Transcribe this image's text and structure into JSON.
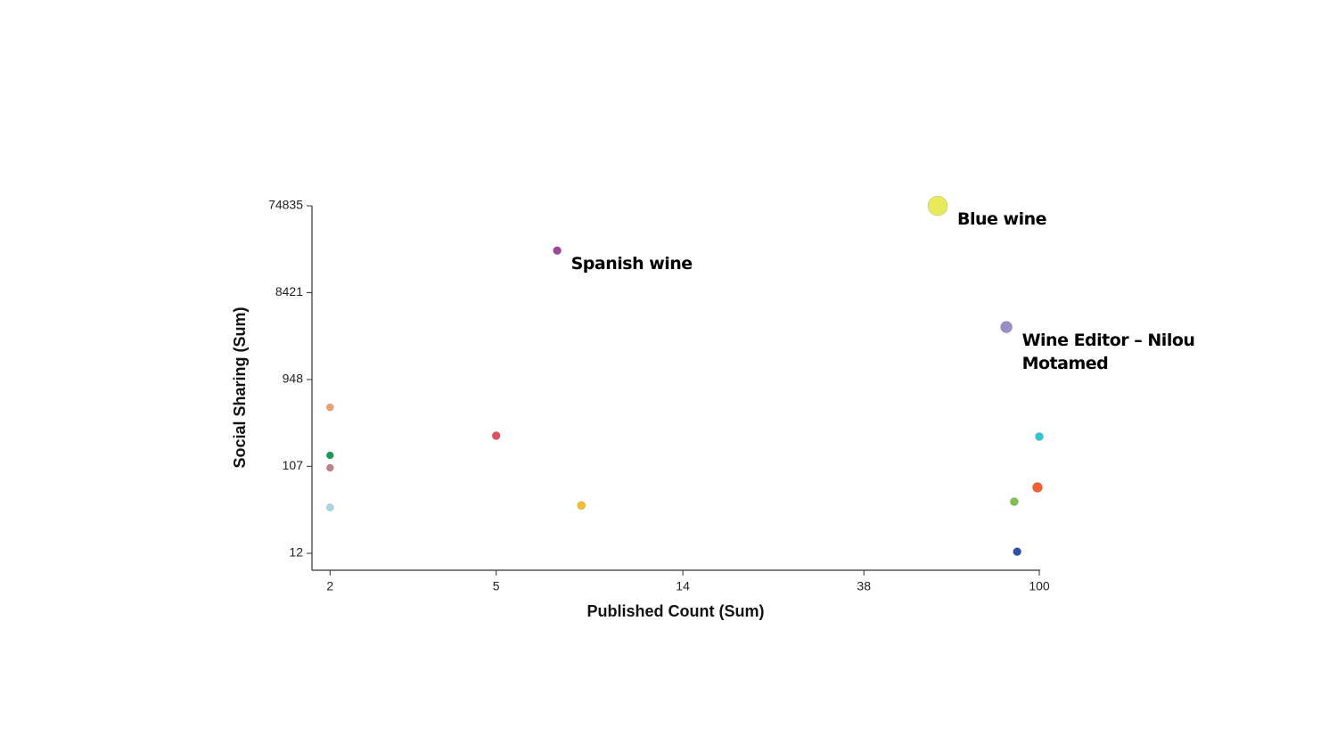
{
  "chart_data": {
    "type": "scatter",
    "x_label": "Published Count (Sum)",
    "y_label": "Social Sharing (Sum)",
    "xscale": "log",
    "yscale": "log",
    "xlim": [
      1.81,
      100
    ],
    "ylim": [
      7.84,
      74835
    ],
    "xticks": [
      2,
      5,
      14,
      38,
      100
    ],
    "yticks": [
      12,
      107,
      948,
      8421,
      74835
    ],
    "x": [
      7.0,
      57.1,
      83.4,
      2,
      5,
      2,
      2,
      2,
      8.0,
      100,
      99.0,
      87.1,
      88.5
    ],
    "values": [
      24300,
      74800,
      3548,
      472,
      231,
      141,
      103,
      38,
      40,
      226,
      63,
      44,
      12.5
    ],
    "sizes": [
      4.5,
      11,
      6.5,
      4,
      4.5,
      4,
      4,
      4,
      4.5,
      4.5,
      5.5,
      4.5,
      4.5
    ],
    "colors": [
      "#a0479a",
      "#e9e95c",
      "#9b8ec4",
      "#f0a070",
      "#e05060",
      "#1a9a50",
      "#c08090",
      "#a8d8e8",
      "#f0c030",
      "#30c8d0",
      "#f06030",
      "#80c050",
      "#3050b0"
    ],
    "labels": [
      "Spanish wine",
      "Blue wine",
      "Wine Editor – Nilou Motamed",
      null,
      null,
      null,
      null,
      null,
      null,
      null,
      null,
      null,
      null
    ]
  }
}
